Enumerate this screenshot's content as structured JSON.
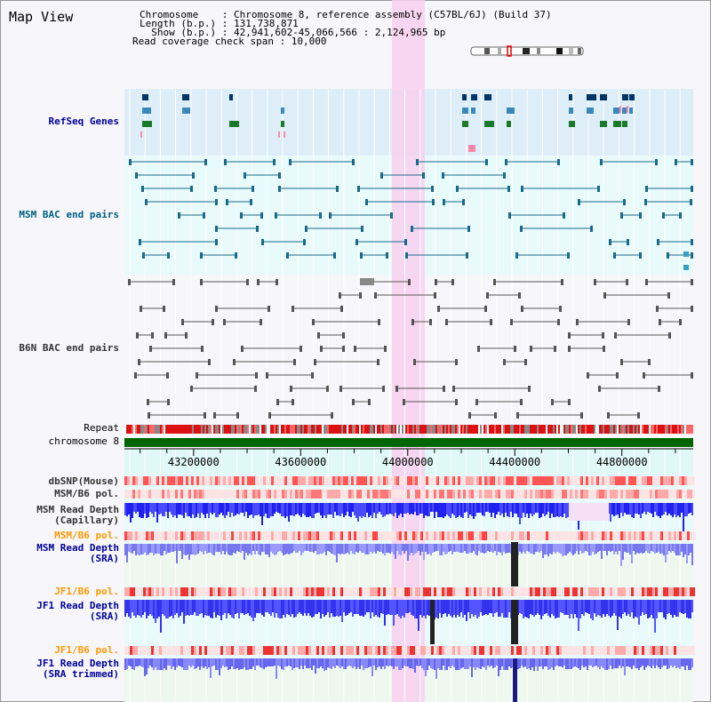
{
  "page": {
    "title": "Map View"
  },
  "info": {
    "line1": "Chromosome    : Chromosome 8, reference assembly (C57BL/6J) (Build 37)",
    "line2": "Length (b.p.) : 131,738,871",
    "line3": "  Show (b.p.) : 42,941,602-45,066,566 : 2,124,965 bp",
    "line4": "Read coverage check span : 10,000"
  },
  "tracks": {
    "refseq": "RefSeq Genes",
    "msm_bac": "MSM BAC end pairs",
    "b6n_bac": "B6N BAC end pairs",
    "repeat": "Repeat",
    "chromosome": "chromosome 8",
    "dbsnp": "dbSNP(Mouse)",
    "msm_b6_pol1": "MSM/B6 pol.",
    "msm_depth_cap_1": "MSM Read Depth",
    "msm_depth_cap_2": "(Capillary)",
    "msm_b6_pol2": "MSM/B6 pol.",
    "msm_depth_sra_1": "MSM Read Depth",
    "msm_depth_sra_2": "(SRA)",
    "jf1_b6_pol1": "JF1/B6 pol.",
    "jf1_depth_sra_1": "JF1 Read Depth",
    "jf1_depth_sra_2": "(SRA)",
    "jf1_b6_pol2": "JF1/B6 pol.",
    "jf1_depth_trim_1": "JF1 Read Depth",
    "jf1_depth_trim_2": "(SRA trimmed)"
  },
  "axis": {
    "ticks": [
      43200000,
      43600000,
      44000000,
      44400000,
      44800000
    ],
    "tick_labels": [
      "43200000",
      "43600000",
      "44000000",
      "44400000",
      "44800000"
    ]
  },
  "colors": {
    "refseq": "#000099",
    "msm_bac": "#006080",
    "b6n_bac": "#444444",
    "orange": "#ff9900",
    "dark": "#333333",
    "blue": "#000099",
    "highlight": "#f8d0f0"
  }
}
